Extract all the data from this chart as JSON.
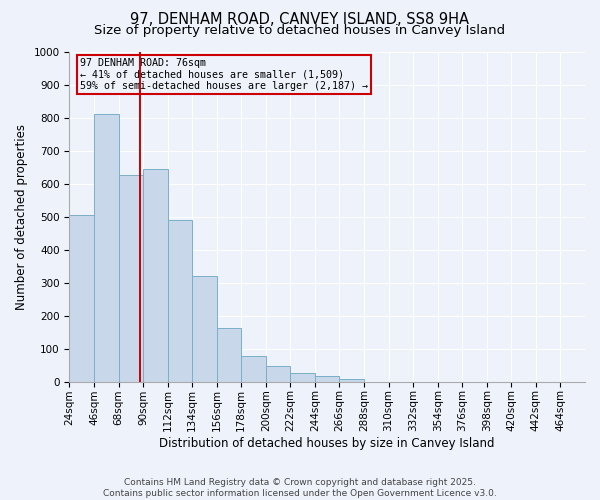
{
  "title": "97, DENHAM ROAD, CANVEY ISLAND, SS8 9HA",
  "subtitle": "Size of property relative to detached houses in Canvey Island",
  "xlabel": "Distribution of detached houses by size in Canvey Island",
  "ylabel": "Number of detached properties",
  "bar_color": "#c8d8ea",
  "bar_edge_color": "#7aafc8",
  "background_color": "#eef2fb",
  "grid_color": "#ffffff",
  "annotation_line1": "97 DENHAM ROAD: 76sqm",
  "annotation_line2": "← 41% of detached houses are smaller (1,509)",
  "annotation_line3": "59% of semi-detached houses are larger (2,187) →",
  "annotation_box_color": "#cc0000",
  "vline_x": 76,
  "vline_color": "#cc0000",
  "categories": [
    "24sqm",
    "46sqm",
    "68sqm",
    "90sqm",
    "112sqm",
    "134sqm",
    "156sqm",
    "178sqm",
    "200sqm",
    "222sqm",
    "244sqm",
    "266sqm",
    "288sqm",
    "310sqm",
    "332sqm",
    "354sqm",
    "376sqm",
    "398sqm",
    "420sqm",
    "442sqm",
    "464sqm"
  ],
  "bin_edges": [
    13,
    35,
    57,
    79,
    101,
    123,
    145,
    167,
    189,
    211,
    233,
    255,
    277,
    299,
    321,
    343,
    365,
    387,
    409,
    431,
    453,
    475
  ],
  "values": [
    505,
    812,
    627,
    645,
    490,
    320,
    162,
    78,
    48,
    25,
    18,
    8,
    0,
    0,
    0,
    0,
    0,
    0,
    0,
    0,
    0
  ],
  "ylim": [
    0,
    1000
  ],
  "yticks": [
    0,
    100,
    200,
    300,
    400,
    500,
    600,
    700,
    800,
    900,
    1000
  ],
  "footer_text": "Contains HM Land Registry data © Crown copyright and database right 2025.\nContains public sector information licensed under the Open Government Licence v3.0.",
  "title_fontsize": 10.5,
  "subtitle_fontsize": 9.5,
  "label_fontsize": 8.5,
  "tick_fontsize": 7.5,
  "footer_fontsize": 6.5
}
